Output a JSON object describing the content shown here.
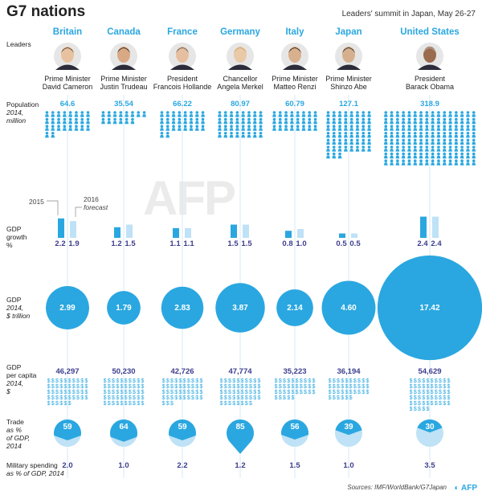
{
  "header": {
    "title": "G7 nations",
    "subtitle": "Leaders' summit in Japan, May 26-27"
  },
  "row_labels": {
    "leaders": "Leaders",
    "population": "Population",
    "population_sub1": "2014,",
    "population_sub2": "million",
    "gdp_growth1": "GDP",
    "gdp_growth2": "growth",
    "gdp_growth3": "%",
    "gdp1": "GDP",
    "gdp2": "2014,",
    "gdp3": "$ trillion",
    "pc1": "GDP",
    "pc2": "per capita",
    "pc3": "2014,",
    "pc4": "$",
    "trade1": "Trade",
    "trade2": "as %",
    "trade3": "of GDP,",
    "trade4": "2014",
    "mil1": "Military spending",
    "mil2": "as % of GDP, 2014"
  },
  "legend": {
    "y2015": "2015",
    "y2016": "2016",
    "forecast": "forecast"
  },
  "colors": {
    "accent": "#2aa7e0",
    "light": "#bfe2f6",
    "value_text": "#3d3d8f",
    "trade_dark": "#2aa7e0",
    "trade_light": "#bfe2f6"
  },
  "chart_data": {
    "type": "table",
    "countries": [
      "Britain",
      "Canada",
      "France",
      "Germany",
      "Italy",
      "Japan",
      "United States"
    ],
    "leaders": [
      {
        "role": "Prime Minister",
        "name": "David Cameron"
      },
      {
        "role": "Prime Minister",
        "name": "Justin Trudeau"
      },
      {
        "role": "President",
        "name": "Francois Hollande"
      },
      {
        "role": "Chancellor",
        "name": "Angela Merkel"
      },
      {
        "role": "Prime Minister",
        "name": "Matteo Renzi"
      },
      {
        "role": "Prime Minister",
        "name": "Shinzo Abe"
      },
      {
        "role": "President",
        "name": "Barack Obama"
      }
    ],
    "population_million_2014": [
      "64.6",
      "35.54",
      "66.22",
      "80.97",
      "60.79",
      "127.1",
      "318.9"
    ],
    "gdp_growth_2015": [
      "2.2",
      "1.2",
      "1.1",
      "1.5",
      "0.8",
      "0.5",
      "2.4"
    ],
    "gdp_growth_2016_forecast": [
      "1.9",
      "1.5",
      "1.1",
      "1.5",
      "1.0",
      "0.5",
      "2.4"
    ],
    "gdp_trillion_2014": [
      "2.99",
      "1.79",
      "2.83",
      "3.87",
      "2.14",
      "4.60",
      "17.42"
    ],
    "gdp_per_capita_2014": [
      "46,297",
      "50,230",
      "42,726",
      "47,774",
      "35,223",
      "36,194",
      "54,629"
    ],
    "trade_pct_gdp_2014": [
      "59",
      "64",
      "59",
      "85",
      "56",
      "39",
      "30"
    ],
    "military_spending_pct_gdp_2014": [
      "2.0",
      "1.0",
      "2.2",
      "1.2",
      "1.5",
      "1.0",
      "3.5"
    ]
  },
  "footer": {
    "sources": "Sources: IMF/WorldBank/G7Japan",
    "logo": "AFP",
    "watermark": "AFP"
  }
}
